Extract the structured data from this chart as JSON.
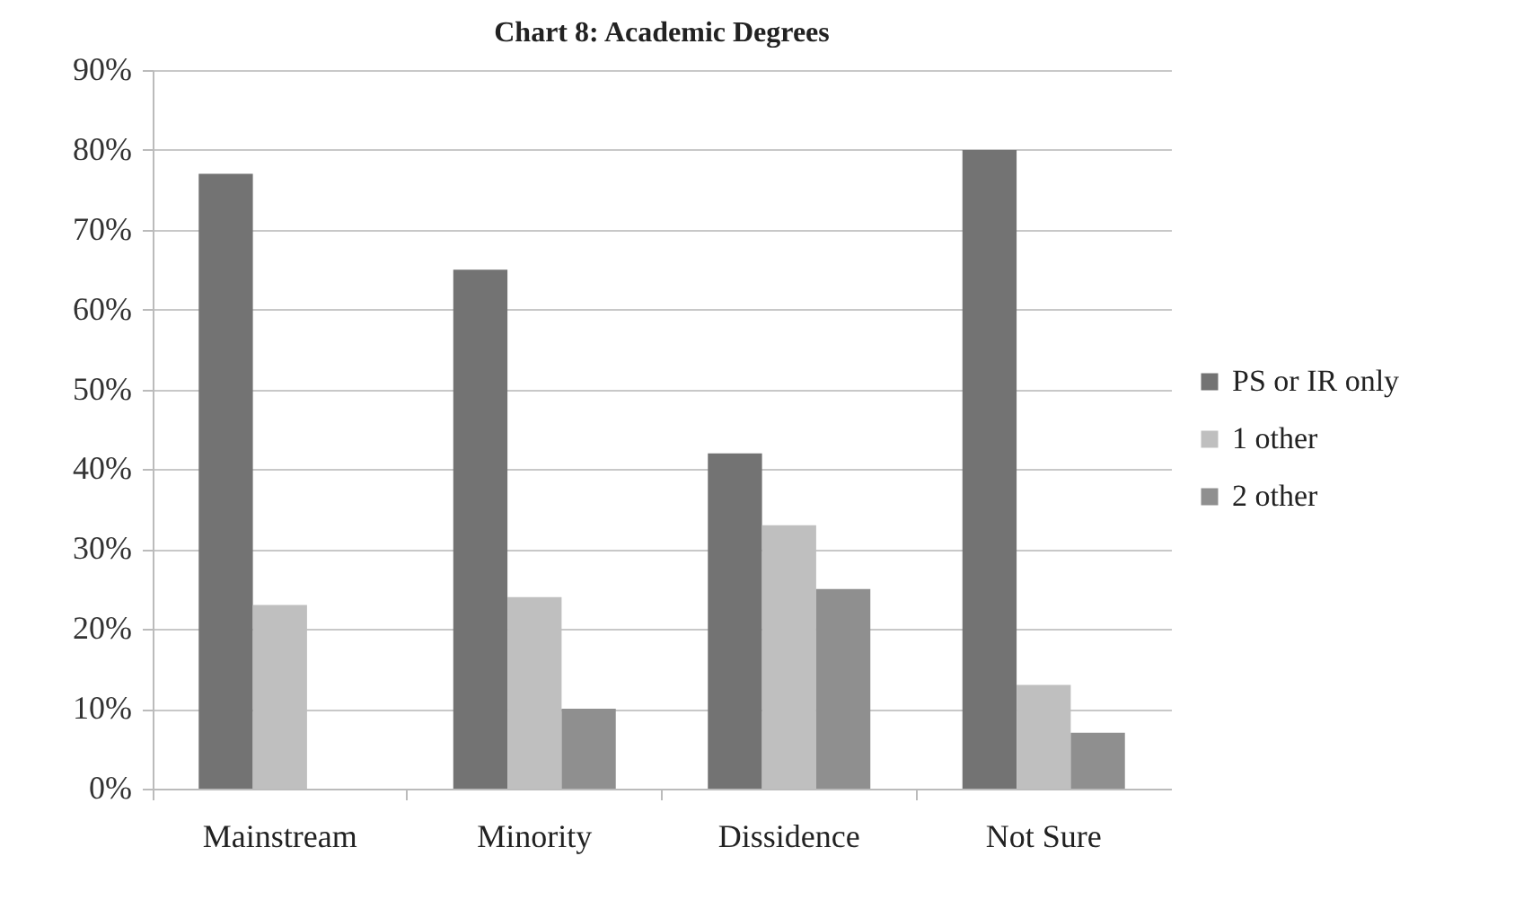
{
  "chart_data": {
    "type": "bar",
    "title": "Chart 8: Academic Degrees",
    "categories": [
      "Mainstream",
      "Minority",
      "Dissidence",
      "Not Sure"
    ],
    "series": [
      {
        "name": "PS or IR only",
        "color": "#737373",
        "values": [
          77,
          65,
          42,
          80
        ]
      },
      {
        "name": "1 other",
        "color": "#bfbfbf",
        "values": [
          23,
          24,
          33,
          13
        ]
      },
      {
        "name": "2 other",
        "color": "#8f8f8f",
        "values": [
          0,
          10,
          25,
          7
        ]
      }
    ],
    "ylim": [
      0,
      90
    ],
    "yticks": [
      {
        "value": 0,
        "label": "0%"
      },
      {
        "value": 10,
        "label": "10%"
      },
      {
        "value": 20,
        "label": "20%"
      },
      {
        "value": 30,
        "label": "30%"
      },
      {
        "value": 40,
        "label": "40%"
      },
      {
        "value": 50,
        "label": "50%"
      },
      {
        "value": 60,
        "label": "60%"
      },
      {
        "value": 70,
        "label": "70%"
      },
      {
        "value": 80,
        "label": "80%"
      },
      {
        "value": 90,
        "label": "90%"
      }
    ],
    "grid": "y",
    "legend": "right"
  }
}
